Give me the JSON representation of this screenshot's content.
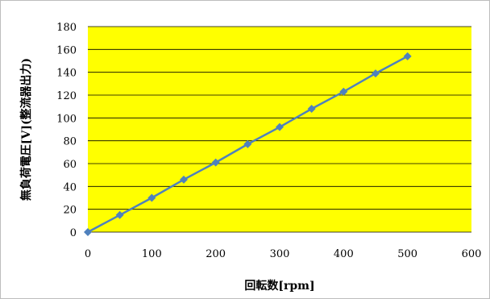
{
  "chart_data": {
    "type": "line",
    "xlabel": "回転数[rpm]",
    "ylabel": "無負荷電圧[V](整流器出力)",
    "xlim": [
      0,
      600
    ],
    "ylim": [
      0,
      180
    ],
    "x_ticks": [
      "0",
      "100",
      "200",
      "300",
      "400",
      "500",
      "600"
    ],
    "y_ticks": [
      "0",
      "20",
      "40",
      "60",
      "80",
      "100",
      "120",
      "140",
      "160",
      "180"
    ],
    "grid": "horizontal",
    "legend": "none",
    "series": [
      {
        "x": [
          0,
          50,
          100,
          150,
          200,
          250,
          300,
          350,
          400,
          450,
          500
        ],
        "y": [
          0,
          15,
          30,
          46,
          61,
          77,
          92,
          108,
          123,
          139,
          154
        ]
      }
    ],
    "colors": {
      "plot_background": "#ffff00",
      "series": "#4f81bd",
      "grid": "#000000"
    }
  }
}
